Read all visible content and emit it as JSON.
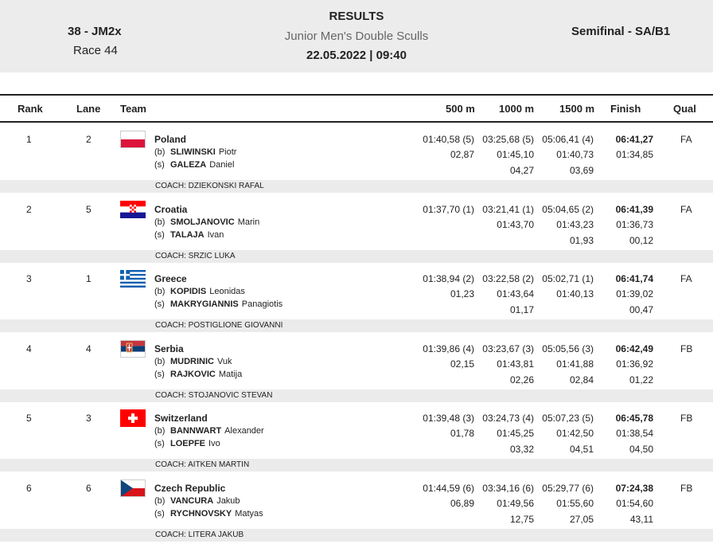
{
  "header": {
    "event": "38 - JM2x",
    "race": "Race 44",
    "title": "RESULTS",
    "boat_class": "Junior Men's Double Sculls",
    "date_time": "22.05.2022 | 09:40",
    "phase": "Semifinal - SA/B1"
  },
  "columns": {
    "rank": "Rank",
    "lane": "Lane",
    "team": "Team",
    "m500": "500 m",
    "m1000": "1000 m",
    "m1500": "1500 m",
    "finish": "Finish",
    "qual": "Qual"
  },
  "rows": [
    {
      "rank": "1",
      "lane": "2",
      "country": "Poland",
      "flag": "poland",
      "bow_seat": "(b)",
      "bow_surname": "SLIWINSKI",
      "bow_first": "Piotr",
      "stroke_seat": "(s)",
      "stroke_surname": "GALEZA",
      "stroke_first": "Daniel",
      "m500": [
        "01:40,58 (5)",
        "02,87",
        ""
      ],
      "m1000": [
        "03:25,68 (5)",
        "01:45,10",
        "04,27"
      ],
      "m1500": [
        "05:06,41 (4)",
        "01:40,73",
        "03,69"
      ],
      "finish": [
        "06:41,27",
        "01:34,85",
        ""
      ],
      "qual": "FA",
      "coach": "COACH: DZIEKONSKI RAFAL"
    },
    {
      "rank": "2",
      "lane": "5",
      "country": "Croatia",
      "flag": "croatia",
      "bow_seat": "(b)",
      "bow_surname": "SMOLJANOVIC",
      "bow_first": "Marin",
      "stroke_seat": "(s)",
      "stroke_surname": "TALAJA",
      "stroke_first": "Ivan",
      "m500": [
        "01:37,70 (1)",
        "",
        ""
      ],
      "m1000": [
        "03:21,41 (1)",
        "01:43,70",
        ""
      ],
      "m1500": [
        "05:04,65 (2)",
        "01:43,23",
        "01,93"
      ],
      "finish": [
        "06:41,39",
        "01:36,73",
        "00,12"
      ],
      "qual": "FA",
      "coach": "COACH: SRZIC LUKA"
    },
    {
      "rank": "3",
      "lane": "1",
      "country": "Greece",
      "flag": "greece",
      "bow_seat": "(b)",
      "bow_surname": "KOPIDIS",
      "bow_first": "Leonidas",
      "stroke_seat": "(s)",
      "stroke_surname": "MAKRYGIANNIS",
      "stroke_first": "Panagiotis",
      "m500": [
        "01:38,94 (2)",
        "01,23",
        ""
      ],
      "m1000": [
        "03:22,58 (2)",
        "01:43,64",
        "01,17"
      ],
      "m1500": [
        "05:02,71 (1)",
        "01:40,13",
        ""
      ],
      "finish": [
        "06:41,74",
        "01:39,02",
        "00,47"
      ],
      "qual": "FA",
      "coach": "COACH: POSTIGLIONE GIOVANNI"
    },
    {
      "rank": "4",
      "lane": "4",
      "country": "Serbia",
      "flag": "serbia",
      "bow_seat": "(b)",
      "bow_surname": "MUDRINIC",
      "bow_first": "Vuk",
      "stroke_seat": "(s)",
      "stroke_surname": "RAJKOVIC",
      "stroke_first": "Matija",
      "m500": [
        "01:39,86 (4)",
        "02,15",
        ""
      ],
      "m1000": [
        "03:23,67 (3)",
        "01:43,81",
        "02,26"
      ],
      "m1500": [
        "05:05,56 (3)",
        "01:41,88",
        "02,84"
      ],
      "finish": [
        "06:42,49",
        "01:36,92",
        "01,22"
      ],
      "qual": "FB",
      "coach": "COACH: STOJANOVIC STEVAN"
    },
    {
      "rank": "5",
      "lane": "3",
      "country": "Switzerland",
      "flag": "switzerland",
      "bow_seat": "(b)",
      "bow_surname": "BANNWART",
      "bow_first": "Alexander",
      "stroke_seat": "(s)",
      "stroke_surname": "LOEPFE",
      "stroke_first": "Ivo",
      "m500": [
        "01:39,48 (3)",
        "01,78",
        ""
      ],
      "m1000": [
        "03:24,73 (4)",
        "01:45,25",
        "03,32"
      ],
      "m1500": [
        "05:07,23 (5)",
        "01:42,50",
        "04,51"
      ],
      "finish": [
        "06:45,78",
        "01:38,54",
        "04,50"
      ],
      "qual": "FB",
      "coach": "COACH: AITKEN MARTIN"
    },
    {
      "rank": "6",
      "lane": "6",
      "country": "Czech Republic",
      "flag": "czech",
      "bow_seat": "(b)",
      "bow_surname": "VANCURA",
      "bow_first": "Jakub",
      "stroke_seat": "(s)",
      "stroke_surname": "RYCHNOVSKY",
      "stroke_first": "Matyas",
      "m500": [
        "01:44,59 (6)",
        "06,89",
        ""
      ],
      "m1000": [
        "03:34,16 (6)",
        "01:49,56",
        "12,75"
      ],
      "m1500": [
        "05:29,77 (6)",
        "01:55,60",
        "27,05"
      ],
      "finish": [
        "07:24,38",
        "01:54,60",
        "43,11"
      ],
      "qual": "FB",
      "coach": "COACH: LITERA JAKUB"
    }
  ]
}
